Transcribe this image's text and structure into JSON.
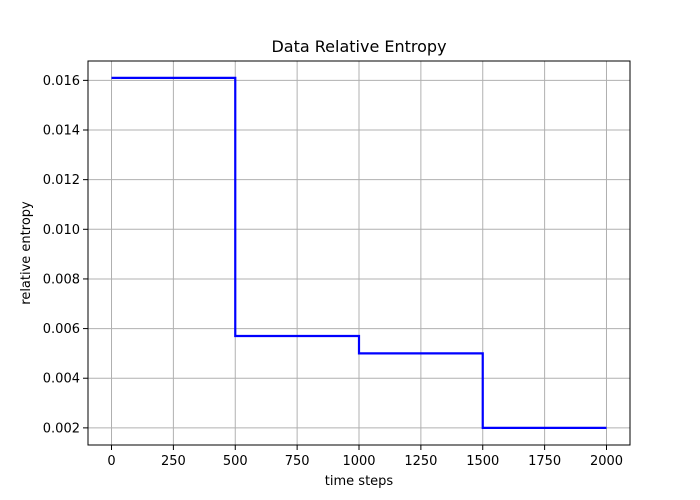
{
  "chart_data": {
    "type": "line",
    "title": "Data Relative Entropy",
    "xlabel": "time steps",
    "ylabel": "relative entropy",
    "xlim": [
      -95,
      2095
    ],
    "ylim": [
      0.00131,
      0.01678
    ],
    "xticks": [
      0,
      250,
      500,
      750,
      1000,
      1250,
      1500,
      1750,
      2000
    ],
    "xtick_labels": [
      "0",
      "250",
      "500",
      "750",
      "1000",
      "1250",
      "1500",
      "1750",
      "2000"
    ],
    "yticks": [
      0.002,
      0.004,
      0.006,
      0.008,
      0.01,
      0.012,
      0.014,
      0.016
    ],
    "ytick_labels": [
      "0.002",
      "0.004",
      "0.006",
      "0.008",
      "0.010",
      "0.012",
      "0.014",
      "0.016"
    ],
    "grid": true,
    "series": [
      {
        "color": "#0000ff",
        "x": [
          0,
          500,
          500,
          1000,
          1000,
          1500,
          1500,
          2000
        ],
        "values": [
          0.0161,
          0.0161,
          0.0057,
          0.0057,
          0.005,
          0.005,
          0.002,
          0.002
        ]
      }
    ]
  }
}
